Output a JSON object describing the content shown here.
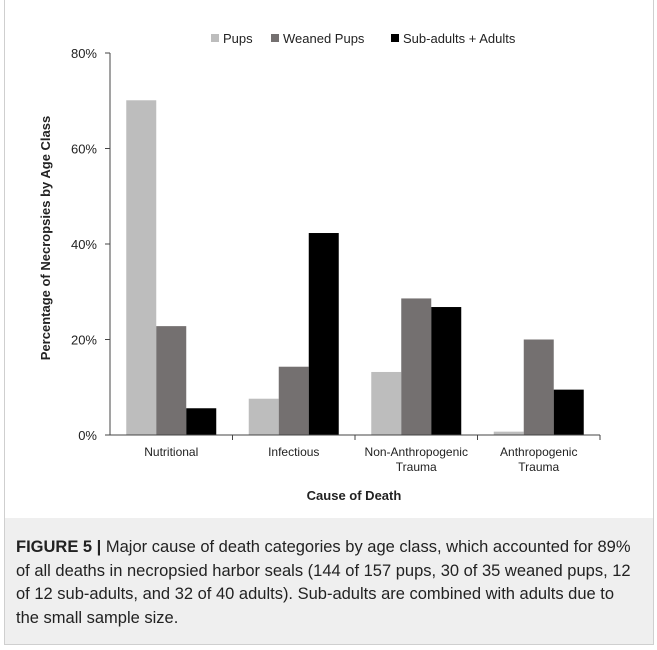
{
  "chart_data": {
    "type": "bar",
    "categories": [
      "Nutritional",
      "Infectious",
      "Non-Anthropogenic\nTrauma",
      "Anthropogenic\nTrauma"
    ],
    "series": [
      {
        "name": "Pups",
        "values": [
          70.1,
          7.6,
          13.2,
          0.7
        ],
        "color": "#bdbdbd"
      },
      {
        "name": "Weaned Pups",
        "values": [
          22.8,
          14.3,
          28.6,
          20.0
        ],
        "color": "#747070"
      },
      {
        "name": "Sub-adults + Adults",
        "values": [
          5.6,
          42.3,
          26.8,
          9.5
        ],
        "color": "#000000"
      }
    ],
    "xlabel": "Cause of Death",
    "ylabel": "Percentage of Necropsies by Age Class",
    "ylim": [
      0,
      80
    ],
    "yticks": [
      "0%",
      "20%",
      "40%",
      "60%",
      "80%"
    ],
    "legend_position": "top"
  },
  "caption": {
    "label": "FIGURE 5 |",
    "text": " Major cause of death categories by age class, which accounted for 89% of all deaths in necropsied harbor seals (144 of 157 pups, 30 of 35 weaned pups, 12 of 12 sub-adults, and 32 of 40 adults). Sub-adults are combined with adults due to the small sample size."
  }
}
